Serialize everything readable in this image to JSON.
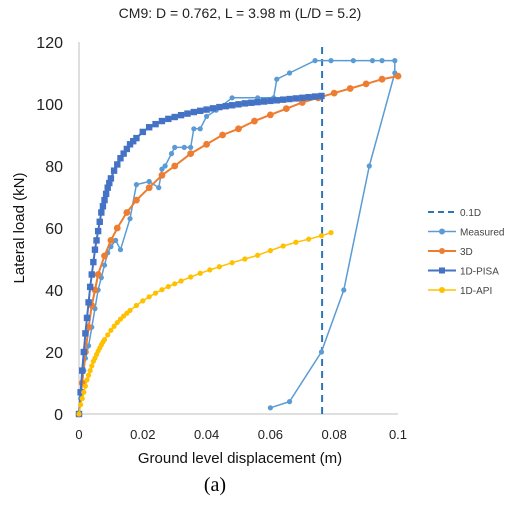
{
  "panel_label": "(a)",
  "chart_data": {
    "type": "line",
    "title": "CM9: D = 0.762, L = 3.98 m (L/D = 5.2)",
    "xlabel": "Ground level displacement (m)",
    "ylabel": "Lateral load (kN)",
    "xlim": [
      0,
      0.1
    ],
    "ylim": [
      0,
      120
    ],
    "xticks": [
      "0",
      "0.02",
      "0.04",
      "0.06",
      "0.08",
      "0.1"
    ],
    "yticks": [
      "0",
      "20",
      "40",
      "60",
      "80",
      "100",
      "120"
    ],
    "grid": false,
    "legend_position": "right",
    "series": [
      {
        "name": "0.1D",
        "style": "dashed-vertical",
        "color": "#2e75b6",
        "x": [
          0.0762,
          0.0762
        ],
        "y": [
          0,
          120
        ]
      },
      {
        "name": "Measured",
        "style": "line-circle",
        "color": "#5b9bd5",
        "x": [
          0,
          0.0005,
          0.001,
          0.0015,
          0.002,
          0.003,
          0.004,
          0.005,
          0.006,
          0.007,
          0.008,
          0.009,
          0.01,
          0.0115,
          0.013,
          0.016,
          0.018,
          0.022,
          0.025,
          0.026,
          0.027,
          0.029,
          0.03,
          0.033,
          0.035,
          0.036,
          0.038,
          0.04,
          0.043,
          0.048,
          0.056,
          0.061,
          0.062,
          0.066,
          0.074,
          0.079,
          0.086,
          0.092,
          0.095,
          0.099,
          0.099,
          0.091,
          0.083,
          0.076,
          0.066,
          0.06
        ],
        "y": [
          0,
          5,
          10,
          14,
          18,
          22,
          28,
          34,
          40,
          44,
          48,
          52,
          54,
          56,
          53,
          63,
          74,
          75,
          73,
          79,
          80,
          84,
          86,
          86,
          86,
          92,
          92,
          96,
          98,
          102,
          102,
          102,
          108,
          110,
          114,
          114,
          114,
          114,
          114,
          114,
          110,
          80,
          40,
          20,
          4,
          2
        ]
      },
      {
        "name": "3D",
        "style": "thick-line",
        "color": "#ed7d31",
        "x": [
          0,
          0.001,
          0.002,
          0.003,
          0.004,
          0.005,
          0.006,
          0.008,
          0.01,
          0.012,
          0.015,
          0.018,
          0.022,
          0.026,
          0.03,
          0.035,
          0.04,
          0.045,
          0.05,
          0.055,
          0.06,
          0.065,
          0.07,
          0.075,
          0.08,
          0.085,
          0.09,
          0.095,
          0.1
        ],
        "y": [
          0,
          10,
          20,
          28,
          35,
          40,
          45,
          51,
          56,
          60,
          65,
          69,
          73,
          77,
          80,
          84,
          87,
          90,
          92,
          94.5,
          96.5,
          98.5,
          100.5,
          102,
          103.5,
          105,
          106.5,
          108,
          109
        ]
      },
      {
        "name": "1D-PISA",
        "style": "line-square",
        "color": "#4472c4",
        "x": [
          0,
          0.0005,
          0.001,
          0.0015,
          0.002,
          0.0025,
          0.003,
          0.0035,
          0.004,
          0.0045,
          0.005,
          0.0055,
          0.006,
          0.0065,
          0.007,
          0.0075,
          0.008,
          0.0085,
          0.009,
          0.0095,
          0.01,
          0.011,
          0.012,
          0.013,
          0.014,
          0.015,
          0.016,
          0.017,
          0.018,
          0.02,
          0.022,
          0.024,
          0.026,
          0.028,
          0.03,
          0.032,
          0.034,
          0.036,
          0.038,
          0.04,
          0.042,
          0.044,
          0.046,
          0.048,
          0.05,
          0.052,
          0.054,
          0.056,
          0.058,
          0.06,
          0.062,
          0.064,
          0.066,
          0.068,
          0.07,
          0.072,
          0.074,
          0.076
        ],
        "y": [
          0,
          7,
          14,
          20,
          26,
          31,
          36,
          41,
          45,
          49,
          53,
          56,
          59,
          62,
          65,
          67,
          69,
          71,
          73,
          74.5,
          76,
          78.5,
          80.5,
          82.5,
          84,
          85.5,
          87,
          88,
          89,
          91,
          92.5,
          93.5,
          94.5,
          95.2,
          95.8,
          96.4,
          96.9,
          97.4,
          97.8,
          98.2,
          98.6,
          99,
          99.3,
          99.6,
          99.9,
          100.2,
          100.4,
          100.6,
          100.8,
          101,
          101.2,
          101.4,
          101.6,
          101.8,
          102,
          102.2,
          102.4,
          102.6
        ]
      },
      {
        "name": "1D-API",
        "style": "line-circle",
        "color": "#ffc000",
        "x": [
          0,
          0.0005,
          0.001,
          0.0015,
          0.002,
          0.0025,
          0.003,
          0.0035,
          0.004,
          0.0045,
          0.005,
          0.0055,
          0.006,
          0.0065,
          0.007,
          0.0075,
          0.008,
          0.009,
          0.01,
          0.011,
          0.012,
          0.013,
          0.014,
          0.015,
          0.016,
          0.018,
          0.02,
          0.022,
          0.024,
          0.026,
          0.028,
          0.03,
          0.032,
          0.035,
          0.038,
          0.041,
          0.044,
          0.048,
          0.052,
          0.056,
          0.06,
          0.064,
          0.068,
          0.072,
          0.076,
          0.079
        ],
        "y": [
          0,
          3,
          5,
          7,
          9,
          11,
          12.5,
          14,
          15.5,
          17,
          18,
          19.2,
          20.3,
          21.3,
          22.3,
          23.2,
          24,
          25.5,
          27,
          28.3,
          29.5,
          30.6,
          31.6,
          32.5,
          33.4,
          35,
          36.5,
          37.8,
          39,
          40.1,
          41.1,
          42,
          42.9,
          44.2,
          45.4,
          46.5,
          47.5,
          48.8,
          50,
          51.2,
          52.7,
          54.2,
          55.4,
          56.4,
          57.5,
          58.5
        ]
      }
    ]
  }
}
